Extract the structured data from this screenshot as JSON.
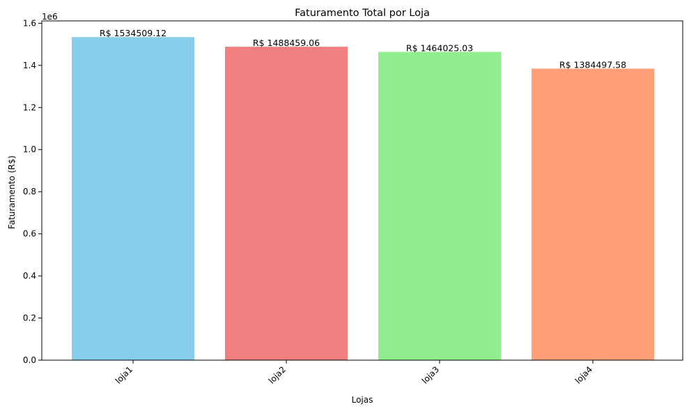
{
  "chart_data": {
    "type": "bar",
    "title": "Faturamento Total por Loja",
    "xlabel": "Lojas",
    "ylabel": "Faturamento (R$)",
    "y_offset_label": "1e6",
    "categories": [
      "loja1",
      "loja2",
      "loja3",
      "loja4"
    ],
    "values": [
      1534509.12,
      1488459.06,
      1464025.03,
      1384497.58
    ],
    "value_labels": [
      "R$ 1534509.12",
      "R$ 1488459.06",
      "R$ 1464025.03",
      "R$ 1384497.58"
    ],
    "colors": [
      "#87ceeb",
      "#f08080",
      "#90ee90",
      "#ffa07a"
    ],
    "ylim": [
      0,
      1611234.58
    ],
    "yticks": [
      0,
      200000,
      400000,
      600000,
      800000,
      1000000,
      1200000,
      1400000,
      1600000
    ],
    "ytick_labels": [
      "0.0",
      "0.2",
      "0.4",
      "0.6",
      "0.8",
      "1.0",
      "1.2",
      "1.4",
      "1.6"
    ],
    "grid": false,
    "legend": "none"
  }
}
